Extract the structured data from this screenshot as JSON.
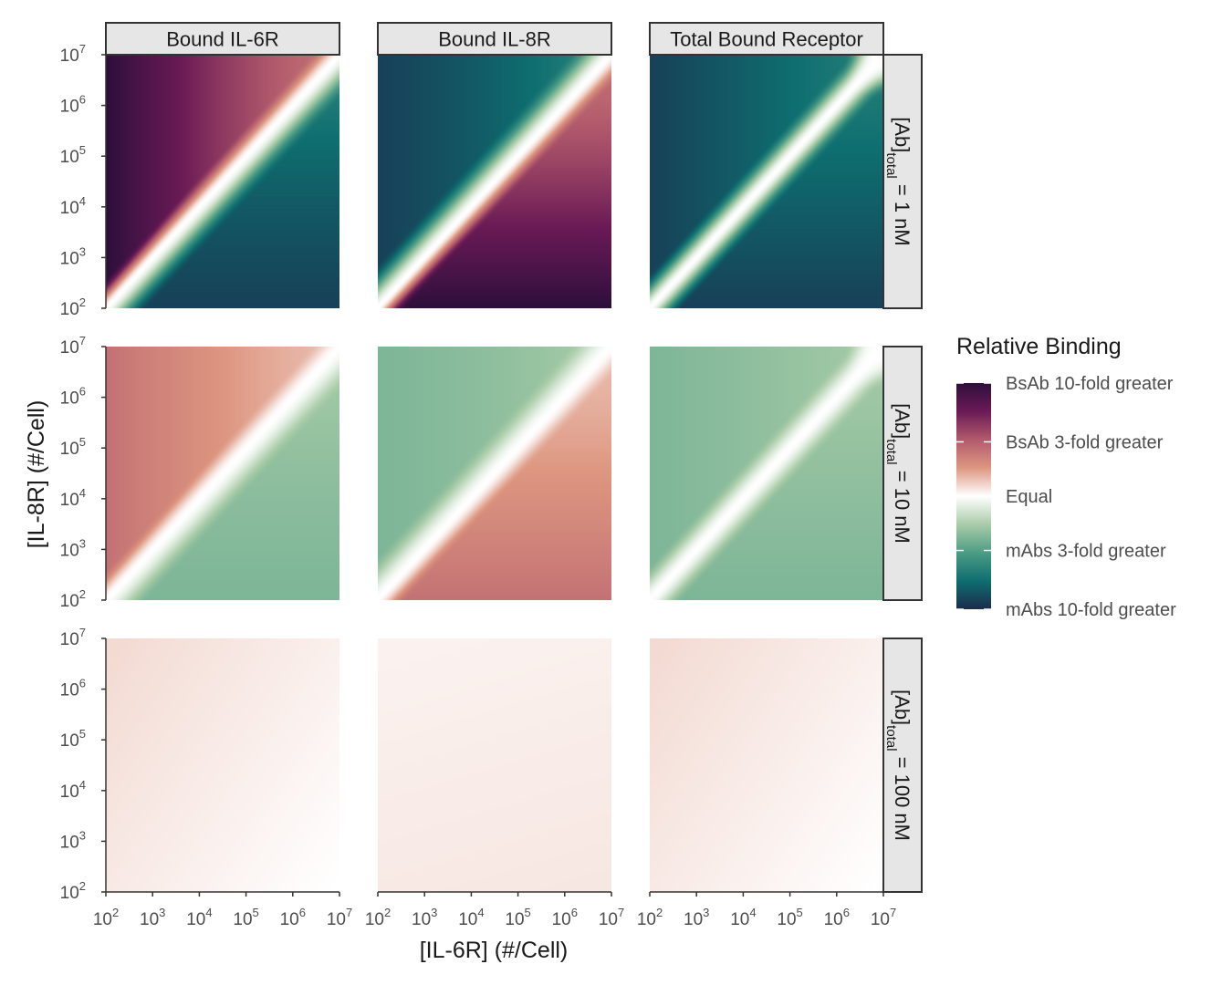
{
  "chart_data": {
    "type": "heatmap",
    "xlabel": "[IL-6R] (#/Cell)",
    "ylabel": "[IL-8R] (#/Cell)",
    "x_tick_labels": [
      {
        "base": "10",
        "exp": "2"
      },
      {
        "base": "10",
        "exp": "3"
      },
      {
        "base": "10",
        "exp": "4"
      },
      {
        "base": "10",
        "exp": "5"
      },
      {
        "base": "10",
        "exp": "6"
      },
      {
        "base": "10",
        "exp": "7"
      }
    ],
    "y_tick_labels": [
      {
        "base": "10",
        "exp": "2"
      },
      {
        "base": "10",
        "exp": "3"
      },
      {
        "base": "10",
        "exp": "4"
      },
      {
        "base": "10",
        "exp": "5"
      },
      {
        "base": "10",
        "exp": "6"
      },
      {
        "base": "10",
        "exp": "7"
      }
    ],
    "x_range_log10": [
      2,
      7
    ],
    "y_range_log10": [
      2,
      7
    ],
    "grid": false,
    "columns": [
      "Bound IL-6R",
      "Bound IL-8R",
      "Total Bound Receptor"
    ],
    "rows": [
      {
        "main": "[Ab]",
        "sub": "total",
        "rest": " = 1 nM"
      },
      {
        "main": "[Ab]",
        "sub": "total",
        "rest": " = 10 nM"
      },
      {
        "main": "[Ab]",
        "sub": "total",
        "rest": " = 100 nM"
      }
    ],
    "row_intensity": [
      1.0,
      0.4,
      0.08
    ],
    "color_scale": {
      "title": "Relative Binding",
      "position": "right",
      "stops": [
        "#2d0f3c",
        "#6a1a55",
        "#b25a6c",
        "#dd9680",
        "#ffffff",
        "#a9cca8",
        "#4c9c85",
        "#0e6e70",
        "#1c2b4c"
      ],
      "labels": [
        "BsAb 10-fold greater",
        "BsAb 3-fold greater",
        "Equal",
        "mAbs 3-fold greater",
        "mAbs 10-fold greater"
      ],
      "label_values": [
        1.0,
        0.48,
        0.0,
        -0.48,
        -1.0
      ]
    }
  }
}
